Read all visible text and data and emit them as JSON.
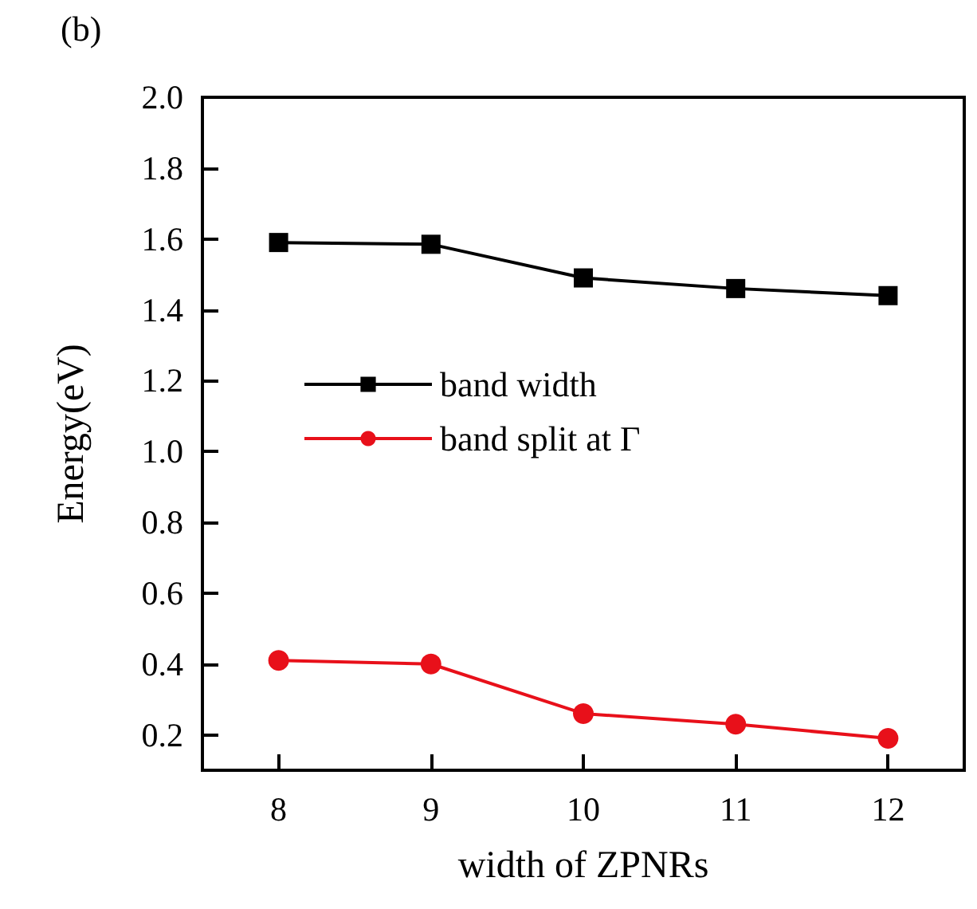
{
  "chart_data": {
    "type": "line",
    "xlabel": "width of ZPNRs",
    "ylabel": "Energy(eV)",
    "annotations": [
      "(b)"
    ],
    "x": [
      8,
      9,
      10,
      11,
      12
    ],
    "series": [
      {
        "name": "band width",
        "color": "#000000",
        "marker": "square",
        "values": [
          1.59,
          1.585,
          1.49,
          1.46,
          1.44
        ]
      },
      {
        "name": "band split at Γ",
        "color": "#e8101a",
        "marker": "circle",
        "values": [
          0.41,
          0.4,
          0.26,
          0.23,
          0.19
        ]
      }
    ],
    "xlim": [
      7.5,
      12.5
    ],
    "xticks": [
      8,
      9,
      10,
      11,
      12
    ],
    "ylim": [
      0.1,
      2.0
    ],
    "yticks": [
      0.2,
      0.4,
      0.6,
      0.8,
      {
        "value": 1,
        "label": "1.0"
      },
      1.2,
      1.4,
      1.6,
      1.8,
      {
        "value": 2,
        "label": "2.0"
      }
    ],
    "grid": false,
    "legend": "left",
    "line_style": "solid"
  }
}
